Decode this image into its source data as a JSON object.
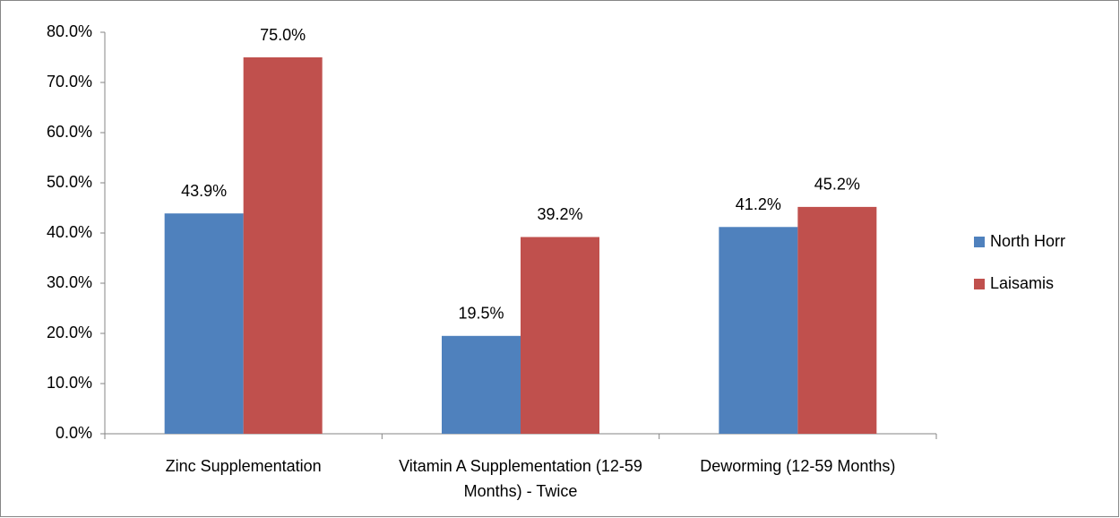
{
  "chart_data": {
    "type": "bar",
    "categories": [
      "Zinc Supplementation",
      "Vitamin A Supplementation (12-59 Months) - Twice",
      "Deworming (12-59 Months)"
    ],
    "series": [
      {
        "name": "North Horr",
        "color": "#4f81bd",
        "values": [
          43.9,
          19.5,
          41.2
        ],
        "value_labels": [
          "43.9%",
          "19.5%",
          "41.2%"
        ]
      },
      {
        "name": "Laisamis",
        "color": "#c0504d",
        "values": [
          75.0,
          39.2,
          45.2
        ],
        "value_labels": [
          "75.0%",
          "39.2%",
          "45.2%"
        ]
      }
    ],
    "ylim": [
      0,
      80
    ],
    "yticks": [
      {
        "value": 0,
        "label": "0.0%"
      },
      {
        "value": 10,
        "label": "10.0%"
      },
      {
        "value": 20,
        "label": "20.0%"
      },
      {
        "value": 30,
        "label": "30.0%"
      },
      {
        "value": 40,
        "label": "40.0%"
      },
      {
        "value": 50,
        "label": "50.0%"
      },
      {
        "value": 60,
        "label": "60.0%"
      },
      {
        "value": 70,
        "label": "70.0%"
      },
      {
        "value": 80,
        "label": "80.0%"
      }
    ],
    "grid": false,
    "legend": "right"
  }
}
